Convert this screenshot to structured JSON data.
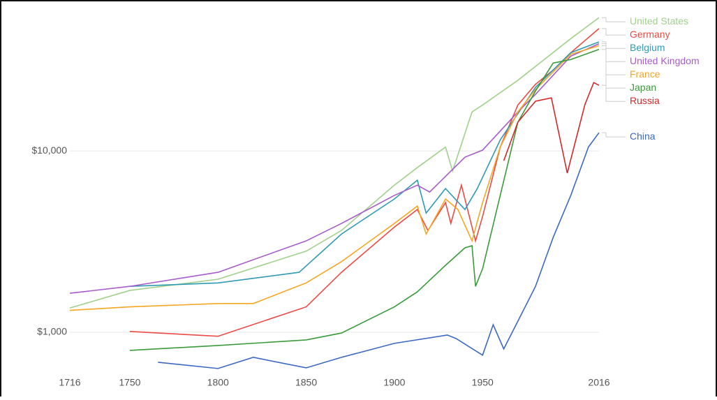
{
  "chart_data": {
    "type": "line",
    "log_scale_y": true,
    "grid": true,
    "xlim": [
      1716,
      2016
    ],
    "xticks": [
      1716,
      1750,
      1800,
      1850,
      1900,
      1950,
      2016
    ],
    "ylim": [
      450,
      60000
    ],
    "yticks": [
      {
        "value": 1000,
        "label": "$1,000"
      },
      {
        "value": 10000,
        "label": "$10,000"
      }
    ],
    "series": [
      {
        "name": "United States",
        "color": "#9fd18b",
        "x": [
          1716,
          1750,
          1800,
          1850,
          1870,
          1900,
          1913,
          1929,
          1933,
          1944,
          1950,
          1970,
          2000,
          2016
        ],
        "values": [
          1360,
          1700,
          1960,
          2800,
          3640,
          6470,
          8090,
          10500,
          7740,
          16400,
          17900,
          24500,
          41600,
          54300
        ]
      },
      {
        "name": "Germany",
        "color": "#ec4a44",
        "x": [
          1750,
          1800,
          1850,
          1870,
          1900,
          1913,
          1919,
          1929,
          1932,
          1938,
          1946,
          1950,
          1960,
          1970,
          1980,
          1990,
          2000,
          2016
        ],
        "values": [
          1010,
          950,
          1380,
          2140,
          3800,
          4750,
          3640,
          5190,
          3980,
          6470,
          3190,
          4350,
          10500,
          17900,
          23300,
          27900,
          34800,
          47300
        ]
      },
      {
        "name": "Belgium",
        "color": "#2f9bb3",
        "x": [
          1750,
          1800,
          1846,
          1870,
          1900,
          1913,
          1918,
          1929,
          1940,
          1947,
          1960,
          1980,
          2000,
          2016
        ],
        "values": [
          1790,
          1870,
          2140,
          3480,
          5430,
          6890,
          4540,
          6200,
          4750,
          6200,
          11500,
          22400,
          34800,
          39900
        ]
      },
      {
        "name": "United Kingdom",
        "color": "#a85ccb",
        "x": [
          1716,
          1750,
          1800,
          1850,
          1870,
          1900,
          1913,
          1920,
          1940,
          1950,
          1970,
          1980,
          2000,
          2016
        ],
        "values": [
          1640,
          1790,
          2140,
          3190,
          3980,
          5680,
          6470,
          5930,
          9230,
          10100,
          16400,
          20500,
          33300,
          39000
        ]
      },
      {
        "name": "France",
        "color": "#f5a623",
        "x": [
          1716,
          1750,
          1800,
          1820,
          1850,
          1870,
          1900,
          1913,
          1918,
          1929,
          1936,
          1944,
          1950,
          1960,
          1970,
          1980,
          2000,
          2016
        ],
        "values": [
          1320,
          1380,
          1440,
          1440,
          1870,
          2450,
          3980,
          4960,
          3480,
          5430,
          4750,
          3190,
          5190,
          10500,
          16400,
          21800,
          34100,
          38000
        ]
      },
      {
        "name": "Japan",
        "color": "#3a9a3a",
        "x": [
          1750,
          1800,
          1850,
          1870,
          1900,
          1913,
          1929,
          1940,
          1944,
          1946,
          1950,
          1960,
          1970,
          1980,
          1990,
          2000,
          2016
        ],
        "values": [
          794,
          845,
          907,
          990,
          1380,
          1670,
          2340,
          2920,
          3000,
          1790,
          2240,
          5680,
          14400,
          21400,
          30500,
          31900,
          36300
        ]
      },
      {
        "name": "Russia",
        "color": "#d62728",
        "x": [
          1962,
          1970,
          1980,
          1989,
          1998,
          2008,
          2013,
          2016
        ],
        "values": [
          8830,
          14400,
          18800,
          19600,
          7540,
          18000,
          23800,
          23000
        ]
      },
      {
        "name": "China",
        "color": "#3b68c4",
        "x": [
          1766,
          1800,
          1820,
          1850,
          1870,
          1900,
          1930,
          1935,
          1950,
          1956,
          1962,
          1970,
          1980,
          1990,
          2000,
          2010,
          2016
        ],
        "values": [
          683,
          631,
          727,
          636,
          727,
          868,
          965,
          923,
          747,
          1100,
          809,
          1150,
          1790,
          3330,
          5680,
          10500,
          12600
        ]
      }
    ]
  }
}
